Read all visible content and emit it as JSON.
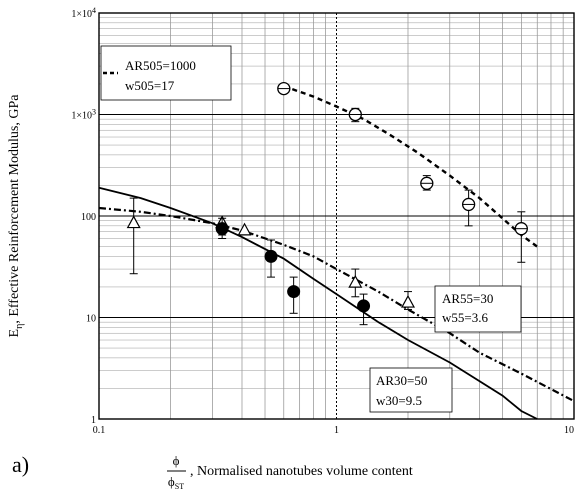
{
  "panel_label": "a)",
  "chart_data": {
    "type": "scatter",
    "x_scale": "log",
    "y_scale": "log",
    "xlim": [
      0.1,
      10
    ],
    "ylim": [
      1,
      10000
    ],
    "grid": true,
    "xticks": [
      {
        "value": 0.1,
        "label": "0.1"
      },
      {
        "value": 1,
        "label": "1"
      },
      {
        "value": 10,
        "label": "10"
      }
    ],
    "yticks": [
      {
        "value": 1,
        "label": "1",
        "sup": ""
      },
      {
        "value": 10,
        "label": "10",
        "sup": ""
      },
      {
        "value": 100,
        "label": "100",
        "sup": ""
      },
      {
        "value": 1000,
        "label": "1×10",
        "sup": "3"
      },
      {
        "value": 10000,
        "label": "1×10",
        "sup": "4"
      }
    ],
    "ylabel": {
      "main": "E",
      "sub": "η",
      "rest": ", Effective Reinforcement Modulus, GPa"
    },
    "xlabel": {
      "frac_num": "ϕ",
      "frac_den_main": "ϕ",
      "frac_den_sub": "ST",
      "rest": ", Normalised nanotubes volume content"
    },
    "series": [
      {
        "line_style": "dashed",
        "annotation": [
          "AR505=1000",
          "w505=17"
        ],
        "marker": "circle-open",
        "curve": [
          [
            0.6,
            1900
          ],
          [
            0.8,
            1500
          ],
          [
            1.0,
            1200
          ],
          [
            1.3,
            900
          ],
          [
            1.7,
            620
          ],
          [
            2.2,
            420
          ],
          [
            3.0,
            250
          ],
          [
            4.0,
            150
          ],
          [
            5.0,
            95
          ],
          [
            6.0,
            65
          ],
          [
            7.0,
            50
          ]
        ],
        "points": [
          {
            "x": 0.6,
            "y": 1800,
            "lo": 1800,
            "hi": 1800
          },
          {
            "x": 1.2,
            "y": 1000,
            "lo": 850,
            "hi": 1150
          },
          {
            "x": 2.4,
            "y": 210,
            "lo": 180,
            "hi": 250
          },
          {
            "x": 3.6,
            "y": 130,
            "lo": 80,
            "hi": 180
          },
          {
            "x": 6.0,
            "y": 75,
            "lo": 35,
            "hi": 110
          }
        ]
      },
      {
        "line_style": "dash-dot",
        "annotation": [
          "AR55=30",
          "w55=3.6"
        ],
        "marker": "triangle-open",
        "curve": [
          [
            0.1,
            120
          ],
          [
            0.15,
            110
          ],
          [
            0.2,
            100
          ],
          [
            0.3,
            85
          ],
          [
            0.4,
            72
          ],
          [
            0.6,
            52
          ],
          [
            0.8,
            40
          ],
          [
            1.0,
            30
          ],
          [
            1.5,
            18
          ],
          [
            2.0,
            12
          ],
          [
            3.0,
            7
          ],
          [
            4.0,
            4.5
          ],
          [
            6.0,
            2.8
          ],
          [
            10.0,
            1.5
          ]
        ],
        "points": [
          {
            "x": 0.14,
            "y": 85,
            "lo": 27,
            "hi": 150
          },
          {
            "x": 0.33,
            "y": 85,
            "lo": 65,
            "hi": 100
          },
          {
            "x": 0.41,
            "y": 72,
            "lo": 72,
            "hi": 72
          },
          {
            "x": 1.2,
            "y": 22,
            "lo": 16,
            "hi": 30
          },
          {
            "x": 2.0,
            "y": 14,
            "lo": 12,
            "hi": 18
          }
        ]
      },
      {
        "line_style": "solid",
        "annotation": [
          "AR30=50",
          "w30=9.5"
        ],
        "marker": "circle-filled",
        "curve": [
          [
            0.1,
            190
          ],
          [
            0.15,
            150
          ],
          [
            0.2,
            120
          ],
          [
            0.3,
            85
          ],
          [
            0.4,
            62
          ],
          [
            0.6,
            38
          ],
          [
            0.8,
            24
          ],
          [
            1.0,
            17
          ],
          [
            1.5,
            9
          ],
          [
            2.0,
            6
          ],
          [
            3.0,
            3.6
          ],
          [
            5.0,
            1.7
          ],
          [
            6.0,
            1.2
          ],
          [
            7.0,
            1.0
          ]
        ],
        "points": [
          {
            "x": 0.33,
            "y": 75,
            "lo": 60,
            "hi": 95
          },
          {
            "x": 0.53,
            "y": 40,
            "lo": 25,
            "hi": 58
          },
          {
            "x": 0.66,
            "y": 18,
            "lo": 11,
            "hi": 25
          },
          {
            "x": 1.3,
            "y": 13,
            "lo": 8.5,
            "hi": 17
          }
        ]
      }
    ]
  }
}
